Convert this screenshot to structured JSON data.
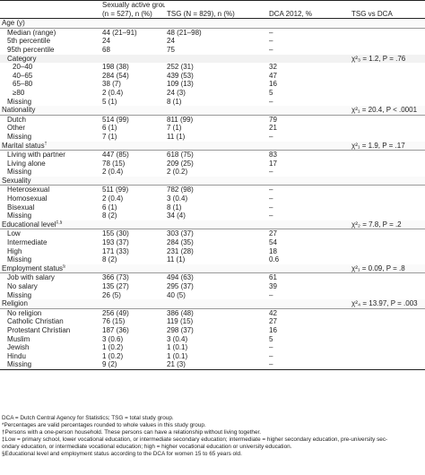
{
  "header": {
    "col1": "Sexually active group",
    "col1b": "(n = 527), n (%)",
    "col2": "TSG (N = 829), n (%)",
    "col3": "DCA 2012, %",
    "col4": "TSG vs DCA"
  },
  "rows": [
    {
      "label": "Age (y)",
      "cls": "sec"
    },
    {
      "label": "Median (range)",
      "a": "44 (21–91)",
      "b": "48 (21–98)",
      "c": "–",
      "ind": 1
    },
    {
      "label": "5th percentile",
      "a": "24",
      "b": "24",
      "c": "–",
      "ind": 1
    },
    {
      "label": "95th percentile",
      "a": "68",
      "b": "75",
      "c": "–",
      "ind": 1
    },
    {
      "label": "Category",
      "cls": "sub",
      "ind": 1,
      "d": "χ²₃ = 1.2, P = .76"
    },
    {
      "label": "20–40",
      "a": "198 (38)",
      "b": "252 (31)",
      "c": "32",
      "ind": 2
    },
    {
      "label": "40–65",
      "a": "284 (54)",
      "b": "439 (53)",
      "c": "47",
      "ind": 2
    },
    {
      "label": "65–80",
      "a": "38 (7)",
      "b": "109 (13)",
      "c": "16",
      "ind": 2
    },
    {
      "label": "≥80",
      "a": "2 (0.4)",
      "b": "24 (3)",
      "c": "5",
      "ind": 2
    },
    {
      "label": "Missing",
      "a": "5 (1)",
      "b": "8 (1)",
      "c": "–",
      "ind": 1
    },
    {
      "label": "Nationality",
      "cls": "sec",
      "d": "χ²₁ = 20.4, P < .0001"
    },
    {
      "label": "Dutch",
      "a": "514 (99)",
      "b": "811 (99)",
      "c": "79",
      "ind": 1
    },
    {
      "label": "Other",
      "a": "6 (1)",
      "b": "7 (1)",
      "c": "21",
      "ind": 1
    },
    {
      "label": "Missing",
      "a": "7 (1)",
      "b": "11 (1)",
      "c": "–",
      "ind": 1
    },
    {
      "label": "Marital status",
      "sup": "†",
      "cls": "sec",
      "d": "χ²₁ = 1.9, P = .17"
    },
    {
      "label": "Living with partner",
      "a": "447 (85)",
      "b": "618 (75)",
      "c": "83",
      "ind": 1
    },
    {
      "label": "Living alone",
      "a": "78 (15)",
      "b": "209 (25)",
      "c": "17",
      "ind": 1
    },
    {
      "label": "Missing",
      "a": "2 (0.4)",
      "b": "2 (0.2)",
      "c": "–",
      "ind": 1
    },
    {
      "label": "Sexuality",
      "cls": "sec"
    },
    {
      "label": "Heterosexual",
      "a": "511 (99)",
      "b": "782 (98)",
      "c": "–",
      "ind": 1
    },
    {
      "label": "Homosexual",
      "a": "2 (0.4)",
      "b": "3 (0.4)",
      "c": "–",
      "ind": 1
    },
    {
      "label": "Bisexual",
      "a": "6 (1)",
      "b": "8 (1)",
      "c": "–",
      "ind": 1
    },
    {
      "label": "Missing",
      "a": "8 (2)",
      "b": "34 (4)",
      "c": "–",
      "ind": 1
    },
    {
      "label": "Educational level",
      "sup": "‡,§",
      "cls": "sec",
      "d": "χ²₂ = 7.8, P = .2"
    },
    {
      "label": "Low",
      "a": "155 (30)",
      "b": "303 (37)",
      "c": "27",
      "ind": 1
    },
    {
      "label": "Intermediate",
      "a": "193 (37)",
      "b": "284 (35)",
      "c": "54",
      "ind": 1
    },
    {
      "label": "High",
      "a": "171 (33)",
      "b": "231 (28)",
      "c": "18",
      "ind": 1
    },
    {
      "label": "Missing",
      "a": "8 (2)",
      "b": "11 (1)",
      "c": "0.6",
      "ind": 1
    },
    {
      "label": "Employment status",
      "sup": "§",
      "cls": "sec",
      "d": "χ²₁ = 0.09, P = .8"
    },
    {
      "label": "Job with salary",
      "a": "366 (73)",
      "b": "494 (63)",
      "c": "61",
      "ind": 1
    },
    {
      "label": "No salary",
      "a": "135 (27)",
      "b": "295 (37)",
      "c": "39",
      "ind": 1
    },
    {
      "label": "Missing",
      "a": "26 (5)",
      "b": "40 (5)",
      "c": "–",
      "ind": 1
    },
    {
      "label": "Religion",
      "cls": "sec",
      "d": "χ²₄ = 13.97, P = .003"
    },
    {
      "label": "No religion",
      "a": "256 (49)",
      "b": "386 (48)",
      "c": "42",
      "ind": 1
    },
    {
      "label": "Catholic Christian",
      "a": "76 (15)",
      "b": "119 (15)",
      "c": "27",
      "ind": 1
    },
    {
      "label": "Protestant Christian",
      "a": "187 (36)",
      "b": "298 (37)",
      "c": "16",
      "ind": 1
    },
    {
      "label": "Muslim",
      "a": "3 (0.6)",
      "b": "3 (0.4)",
      "c": "5",
      "ind": 1
    },
    {
      "label": "Jewish",
      "a": "1 (0.2)",
      "b": "1 (0.1)",
      "c": "–",
      "ind": 1
    },
    {
      "label": "Hindu",
      "a": "1 (0.2)",
      "b": "1 (0.1)",
      "c": "–",
      "ind": 1
    },
    {
      "label": "Missing",
      "a": "9 (2)",
      "b": "21 (3)",
      "c": "–",
      "ind": 1
    }
  ],
  "notes": [
    "DCA = Dutch Central Agency for Statistics; TSG = total study group.",
    "*Percentages are valid percentages rounded to whole values in this study group.",
    "†Persons with a one-person household. These persons can have a relationship without living together.",
    "‡Low = primary school, lower vocational education, or intermediate secondary education; intermediate = higher secondary education, pre-university sec-",
    "ondary education, or intermediate vocational education; high = higher vocational education or university education.",
    "§Educational level and employment status according to the DCA for women 15 to 65 years old."
  ]
}
